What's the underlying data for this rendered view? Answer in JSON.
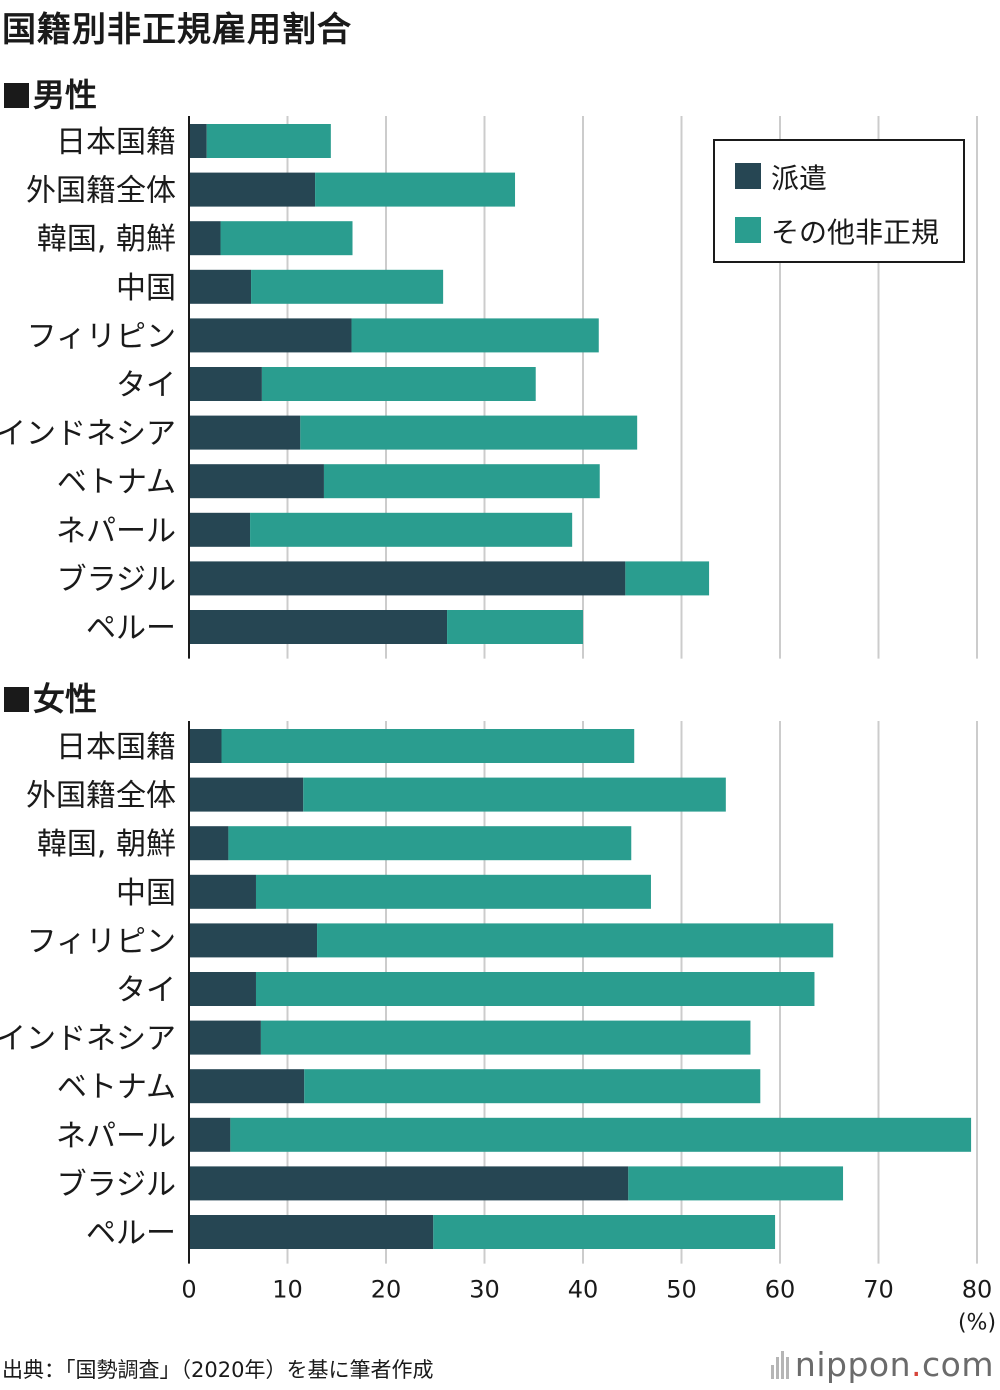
{
  "title": "国籍別非正規雇用割合",
  "sections": {
    "male": "男性",
    "female": "女性"
  },
  "legend": {
    "dispatch": "派遣",
    "other": "その他非正規"
  },
  "colors": {
    "dispatch": "#264653",
    "other": "#2a9d8f",
    "grid": "#cccccc",
    "axis": "#1a1a1a"
  },
  "source": "出典：「国勢調査」（2020年）を基に筆者作成",
  "brand": {
    "name": "nippon",
    "dot": ".",
    "tld": "com"
  },
  "chart_data": {
    "type": "bar",
    "orientation": "horizontal",
    "stacked": true,
    "title": "国籍別非正規雇用割合",
    "categories": [
      "日本国籍",
      "外国籍全体",
      "韓国, 朝鮮",
      "中国",
      "フィリピン",
      "タイ",
      "インドネシア",
      "ベトナム",
      "ネパール",
      "ブラジル",
      "ペルー"
    ],
    "xlim": [
      0,
      80
    ],
    "xticks": [
      "0",
      "10",
      "20",
      "30",
      "40",
      "50",
      "60",
      "70",
      "80"
    ],
    "xunit": "(%)",
    "panels": [
      {
        "name": "男性",
        "series": [
          {
            "name": "派遣",
            "values": [
              1.8,
              12.8,
              3.2,
              6.3,
              16.5,
              7.4,
              11.3,
              13.7,
              6.2,
              44.3,
              26.2
            ]
          },
          {
            "name": "その他非正規",
            "values": [
              12.6,
              20.3,
              13.4,
              19.5,
              25.1,
              27.8,
              34.2,
              28.0,
              32.7,
              8.5,
              13.8
            ]
          }
        ]
      },
      {
        "name": "女性",
        "series": [
          {
            "name": "派遣",
            "values": [
              3.3,
              11.6,
              4.0,
              6.8,
              13.0,
              6.8,
              7.3,
              11.7,
              4.2,
              44.6,
              24.8
            ]
          },
          {
            "name": "その他非正規",
            "values": [
              41.9,
              42.9,
              40.9,
              40.1,
              52.4,
              56.7,
              49.7,
              46.3,
              75.2,
              21.8,
              34.7
            ]
          }
        ]
      }
    ]
  }
}
